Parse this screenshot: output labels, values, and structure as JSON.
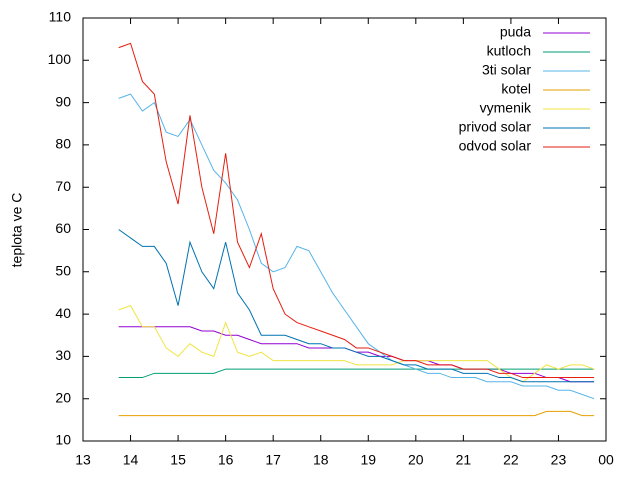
{
  "chart_data": {
    "type": "line",
    "ylabel": "teplota ve C",
    "x": [
      13.75,
      14,
      14.25,
      14.5,
      14.75,
      15,
      15.25,
      15.5,
      15.75,
      16,
      16.25,
      16.5,
      16.75,
      17,
      17.25,
      17.5,
      17.75,
      18,
      18.25,
      18.5,
      18.75,
      19,
      19.25,
      19.5,
      19.75,
      20,
      20.25,
      20.5,
      20.75,
      21,
      21.25,
      21.5,
      21.75,
      22,
      22.25,
      22.5,
      22.75,
      23,
      23.25,
      23.5,
      23.75
    ],
    "series": [
      {
        "name": "puda",
        "color": "#9400d3",
        "values": [
          37,
          37,
          37,
          37,
          37,
          37,
          37,
          36,
          36,
          35,
          35,
          34,
          33,
          33,
          33,
          33,
          32,
          32,
          32,
          32,
          31,
          31,
          30,
          30,
          29,
          29,
          29,
          28,
          28,
          27,
          27,
          27,
          27,
          26,
          26,
          26,
          25,
          25,
          24,
          24,
          24
        ]
      },
      {
        "name": "kutloch",
        "color": "#009e73",
        "values": [
          25,
          25,
          25,
          26,
          26,
          26,
          26,
          26,
          26,
          27,
          27,
          27,
          27,
          27,
          27,
          27,
          27,
          27,
          27,
          27,
          27,
          27,
          27,
          27,
          27,
          27,
          27,
          27,
          27,
          27,
          27,
          27,
          27,
          27,
          27,
          27,
          27,
          27,
          27,
          27,
          27
        ]
      },
      {
        "name": "3ti solar",
        "color": "#56b4e9",
        "values": [
          91,
          92,
          88,
          90,
          83,
          82,
          86,
          80,
          74,
          71,
          67,
          60,
          52,
          50,
          51,
          56,
          55,
          50,
          45,
          41,
          37,
          33,
          31,
          29,
          28,
          27,
          26,
          26,
          25,
          25,
          25,
          24,
          24,
          24,
          23,
          23,
          23,
          22,
          22,
          21,
          20
        ]
      },
      {
        "name": "kotel",
        "color": "#e69f00",
        "values": [
          16,
          16,
          16,
          16,
          16,
          16,
          16,
          16,
          16,
          16,
          16,
          16,
          16,
          16,
          16,
          16,
          16,
          16,
          16,
          16,
          16,
          16,
          16,
          16,
          16,
          16,
          16,
          16,
          16,
          16,
          16,
          16,
          16,
          16,
          16,
          16,
          17,
          17,
          17,
          16,
          16
        ]
      },
      {
        "name": "vymenik",
        "color": "#f0e442",
        "values": [
          41,
          42,
          37,
          37,
          32,
          30,
          33,
          31,
          30,
          38,
          31,
          30,
          31,
          29,
          29,
          29,
          29,
          29,
          29,
          29,
          28,
          28,
          28,
          28,
          29,
          29,
          29,
          29,
          29,
          29,
          29,
          29,
          27,
          25,
          24,
          26,
          28,
          27,
          28,
          28,
          27
        ]
      },
      {
        "name": "privod solar",
        "color": "#0072b2",
        "values": [
          60,
          58,
          56,
          56,
          52,
          42,
          57,
          50,
          46,
          57,
          45,
          41,
          35,
          35,
          35,
          34,
          33,
          33,
          32,
          32,
          31,
          30,
          30,
          29,
          28,
          28,
          27,
          27,
          27,
          26,
          26,
          26,
          25,
          25,
          24,
          24,
          24,
          24,
          24,
          24,
          24
        ]
      },
      {
        "name": "odvod solar",
        "color": "#e51e10",
        "values": [
          103,
          104,
          95,
          92,
          76,
          66,
          87,
          70,
          59,
          78,
          57,
          51,
          59,
          46,
          40,
          38,
          37,
          36,
          35,
          34,
          32,
          32,
          31,
          30,
          29,
          29,
          28,
          28,
          28,
          27,
          27,
          27,
          26,
          26,
          25,
          25,
          25,
          25,
          25,
          25,
          25
        ]
      }
    ],
    "xlim": [
      13,
      24
    ],
    "xticks": [
      13,
      14,
      15,
      16,
      17,
      18,
      19,
      20,
      21,
      22,
      23,
      {
        "value": 24,
        "label": "00"
      }
    ],
    "ylim": [
      10,
      110
    ],
    "yticks": [
      10,
      20,
      30,
      40,
      50,
      60,
      70,
      80,
      90,
      100,
      110
    ],
    "legend": "top-right"
  }
}
